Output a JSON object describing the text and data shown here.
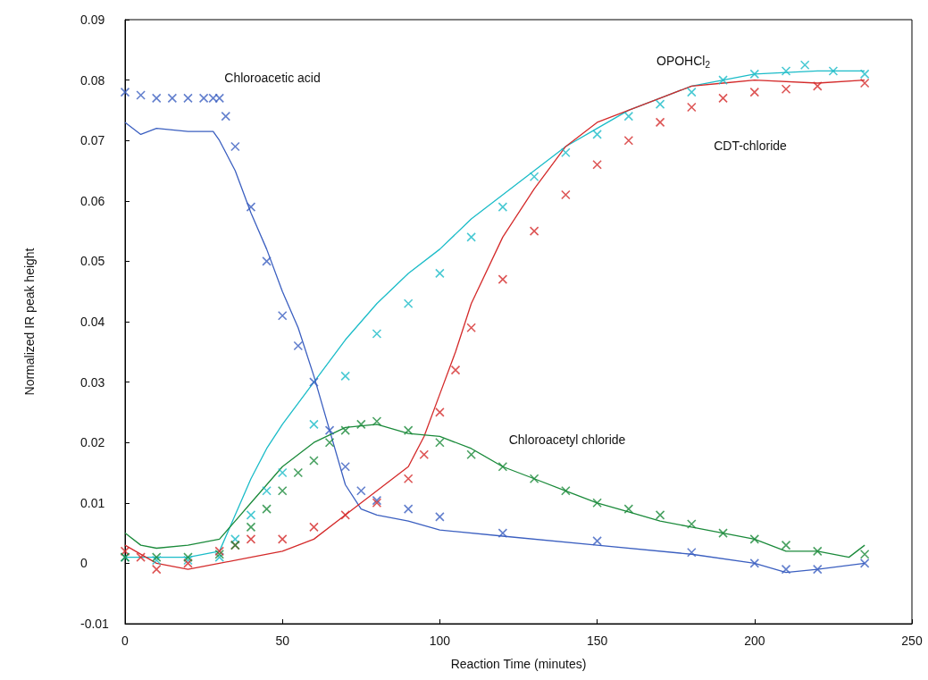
{
  "chart_data": {
    "type": "line",
    "xlabel": "Reaction Time (minutes)",
    "ylabel": "Normalized IR peak height",
    "xlim": [
      0,
      250
    ],
    "xticks": [
      0,
      50,
      100,
      150,
      200,
      250
    ],
    "ylim": [
      -0.01,
      0.09
    ],
    "yticks": [
      -0.01,
      0,
      0.01,
      0.02,
      0.03,
      0.04,
      0.05,
      0.06,
      0.07,
      0.08,
      0.09
    ],
    "grid": false,
    "series": [
      {
        "type": "scatter",
        "marker": "cross",
        "color": "#3b5fc0",
        "x": [
          0,
          5,
          10,
          15,
          20,
          25,
          28,
          30,
          32,
          35,
          40,
          45,
          50,
          55,
          60,
          65,
          70,
          75,
          80,
          90,
          100,
          120,
          150,
          180,
          200,
          210,
          220,
          235
        ],
        "values": [
          0.078,
          0.0775,
          0.077,
          0.077,
          0.077,
          0.077,
          0.077,
          0.077,
          0.074,
          0.069,
          0.059,
          0.05,
          0.041,
          0.036,
          0.03,
          0.022,
          0.016,
          0.012,
          0.0104,
          0.009,
          0.0077,
          0.005,
          0.0037,
          0.0018,
          0,
          -0.001,
          -0.001,
          0
        ]
      },
      {
        "marker": "none",
        "color": "#3b5fc0",
        "x": [
          0,
          5,
          10,
          20,
          28,
          30,
          35,
          40,
          45,
          50,
          55,
          60,
          65,
          70,
          75,
          80,
          90,
          100,
          120,
          150,
          180,
          200,
          210,
          220,
          235
        ],
        "values": [
          0.073,
          0.071,
          0.072,
          0.0715,
          0.0715,
          0.07,
          0.065,
          0.058,
          0.052,
          0.045,
          0.039,
          0.031,
          0.022,
          0.013,
          0.009,
          0.008,
          0.007,
          0.0055,
          0.0045,
          0.003,
          0.0015,
          0,
          -0.0015,
          -0.001,
          0
        ]
      },
      {
        "type": "scatter",
        "marker": "cross",
        "color": "#1bbcc8",
        "x": [
          0,
          10,
          20,
          30,
          35,
          40,
          45,
          50,
          60,
          70,
          80,
          90,
          100,
          110,
          120,
          130,
          140,
          150,
          160,
          170,
          180,
          190,
          200,
          210,
          216,
          225,
          235
        ],
        "values": [
          0.001,
          0.0005,
          0.0005,
          0.001,
          0.004,
          0.008,
          0.012,
          0.015,
          0.023,
          0.031,
          0.038,
          0.043,
          0.048,
          0.054,
          0.059,
          0.064,
          0.068,
          0.071,
          0.074,
          0.076,
          0.078,
          0.08,
          0.081,
          0.0815,
          0.0825,
          0.0815,
          0.081
        ]
      },
      {
        "marker": "none",
        "color": "#1bbcc8",
        "x": [
          0,
          20,
          30,
          35,
          40,
          45,
          50,
          60,
          70,
          80,
          90,
          100,
          110,
          120,
          130,
          140,
          150,
          160,
          170,
          180,
          190,
          200,
          220,
          235
        ],
        "values": [
          0.001,
          0.001,
          0.002,
          0.008,
          0.014,
          0.019,
          0.023,
          0.03,
          0.037,
          0.043,
          0.048,
          0.052,
          0.057,
          0.061,
          0.065,
          0.069,
          0.072,
          0.075,
          0.077,
          0.079,
          0.08,
          0.081,
          0.0815,
          0.0815
        ]
      },
      {
        "type": "scatter",
        "marker": "cross",
        "color": "#d42a2a",
        "x": [
          0,
          5,
          10,
          20,
          30,
          35,
          40,
          50,
          60,
          70,
          80,
          90,
          95,
          100,
          105,
          110,
          120,
          130,
          140,
          150,
          160,
          170,
          180,
          190,
          200,
          210,
          220,
          235
        ],
        "values": [
          0.002,
          0.001,
          -0.001,
          0,
          0.002,
          0.003,
          0.004,
          0.004,
          0.006,
          0.008,
          0.01,
          0.014,
          0.018,
          0.025,
          0.032,
          0.039,
          0.047,
          0.055,
          0.061,
          0.066,
          0.07,
          0.073,
          0.0755,
          0.077,
          0.078,
          0.0785,
          0.079,
          0.0795
        ]
      },
      {
        "marker": "none",
        "color": "#d42a2a",
        "x": [
          0,
          10,
          20,
          30,
          40,
          50,
          60,
          70,
          80,
          90,
          95,
          100,
          105,
          110,
          120,
          130,
          140,
          150,
          160,
          170,
          180,
          190,
          200,
          220,
          235
        ],
        "values": [
          0.003,
          0,
          -0.001,
          0,
          0.001,
          0.002,
          0.004,
          0.008,
          0.012,
          0.016,
          0.021,
          0.028,
          0.035,
          0.043,
          0.054,
          0.062,
          0.069,
          0.073,
          0.075,
          0.077,
          0.079,
          0.0795,
          0.08,
          0.0795,
          0.08
        ]
      },
      {
        "type": "scatter",
        "marker": "cross",
        "color": "#1a8a3a",
        "x": [
          0,
          10,
          20,
          30,
          35,
          40,
          45,
          50,
          55,
          60,
          65,
          70,
          75,
          80,
          90,
          100,
          110,
          120,
          130,
          140,
          150,
          160,
          170,
          180,
          190,
          200,
          210,
          220,
          235
        ],
        "values": [
          0.001,
          0.001,
          0.001,
          0.0015,
          0.003,
          0.006,
          0.009,
          0.012,
          0.015,
          0.017,
          0.02,
          0.022,
          0.023,
          0.0235,
          0.022,
          0.02,
          0.018,
          0.016,
          0.014,
          0.012,
          0.01,
          0.009,
          0.008,
          0.0065,
          0.005,
          0.004,
          0.003,
          0.002,
          0.0015
        ]
      },
      {
        "marker": "none",
        "color": "#1a8a3a",
        "x": [
          0,
          5,
          10,
          20,
          30,
          35,
          40,
          45,
          50,
          55,
          60,
          70,
          80,
          90,
          100,
          110,
          120,
          130,
          140,
          150,
          160,
          170,
          180,
          190,
          200,
          210,
          220,
          230,
          235
        ],
        "values": [
          0.005,
          0.003,
          0.0025,
          0.003,
          0.004,
          0.007,
          0.01,
          0.013,
          0.016,
          0.018,
          0.02,
          0.0225,
          0.023,
          0.0215,
          0.021,
          0.019,
          0.016,
          0.014,
          0.012,
          0.01,
          0.0085,
          0.007,
          0.006,
          0.005,
          0.004,
          0.002,
          0.002,
          0.001,
          0.003
        ]
      }
    ],
    "annotations": [
      "Chloroacetic acid",
      "OPOHCl$_{2}$",
      "CDT-chloride",
      "Chloroacetyl chloride"
    ]
  }
}
